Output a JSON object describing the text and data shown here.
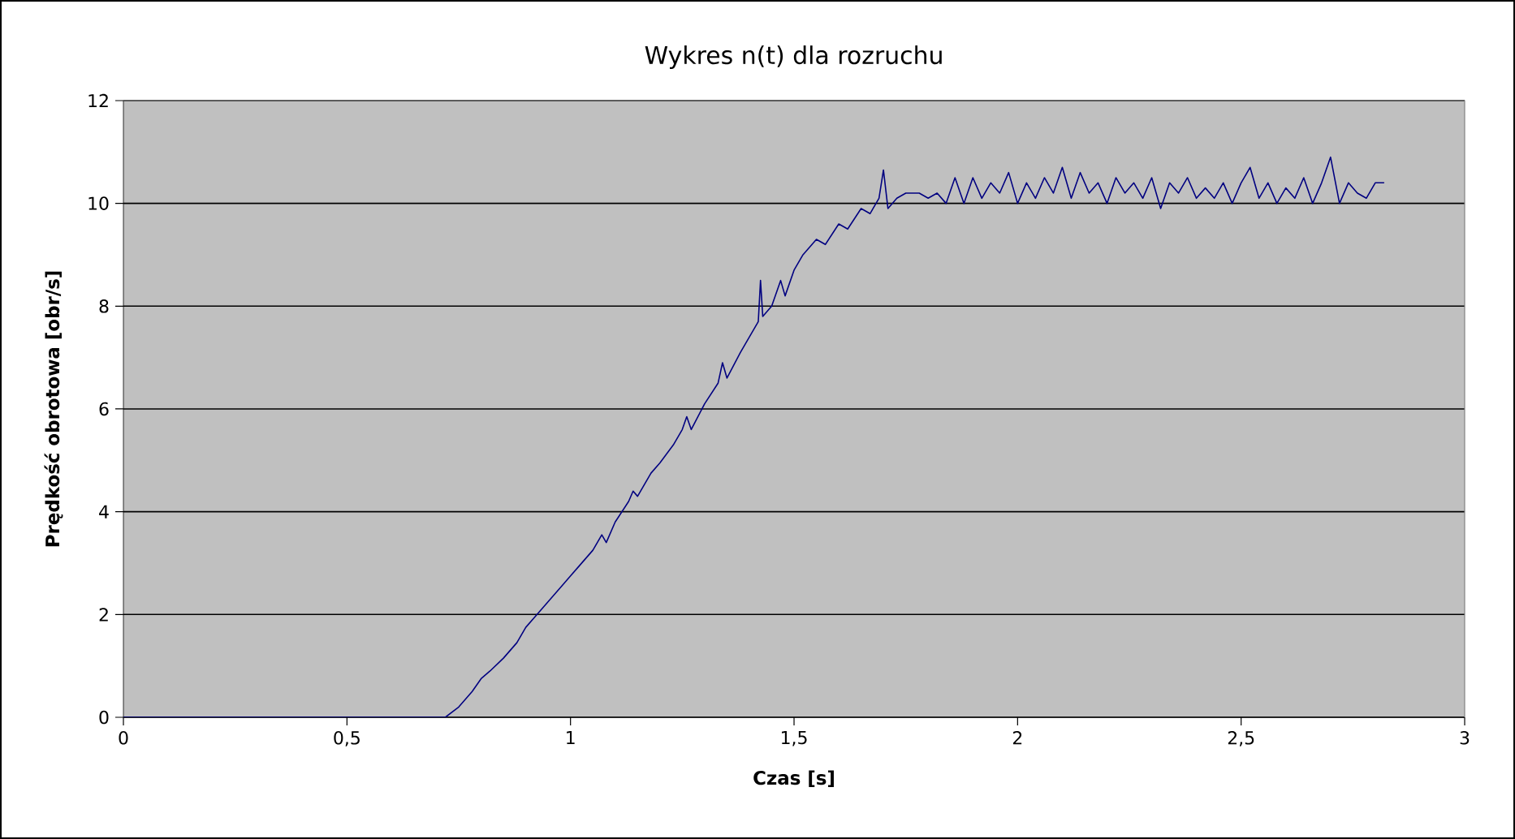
{
  "chart_data": {
    "type": "line",
    "title": "Wykres n(t) dla rozruchu",
    "xlabel": "Czas [s]",
    "ylabel": "Prędkość obrotowa [obr/s]",
    "xlim": [
      0,
      3
    ],
    "ylim": [
      0,
      12
    ],
    "xticks": [
      0,
      {
        "value": 0.5,
        "label": "0,5"
      },
      1,
      {
        "value": 1.5,
        "label": "1,5"
      },
      2,
      {
        "value": 2.5,
        "label": "2,5"
      },
      3
    ],
    "yticks": [
      0,
      2,
      4,
      6,
      8,
      10,
      12
    ],
    "grid": "y",
    "series": [
      {
        "color": "#000080",
        "x": [
          0,
          0.7,
          0.72,
          0.75,
          0.78,
          0.8,
          0.82,
          0.85,
          0.88,
          0.9,
          0.92,
          0.95,
          0.98,
          1.0,
          1.02,
          1.05,
          1.07,
          1.08,
          1.1,
          1.13,
          1.14,
          1.15,
          1.18,
          1.2,
          1.23,
          1.25,
          1.26,
          1.27,
          1.3,
          1.33,
          1.34,
          1.35,
          1.38,
          1.4,
          1.42,
          1.425,
          1.43,
          1.45,
          1.47,
          1.48,
          1.5,
          1.52,
          1.55,
          1.57,
          1.6,
          1.62,
          1.65,
          1.67,
          1.69,
          1.7,
          1.71,
          1.73,
          1.75,
          1.78,
          1.8,
          1.82,
          1.84,
          1.86,
          1.88,
          1.9,
          1.92,
          1.94,
          1.96,
          1.98,
          2.0,
          2.02,
          2.04,
          2.06,
          2.08,
          2.1,
          2.12,
          2.14,
          2.16,
          2.18,
          2.2,
          2.22,
          2.24,
          2.26,
          2.28,
          2.3,
          2.32,
          2.34,
          2.36,
          2.38,
          2.4,
          2.42,
          2.44,
          2.46,
          2.48,
          2.5,
          2.52,
          2.54,
          2.56,
          2.58,
          2.6,
          2.62,
          2.64,
          2.66,
          2.68,
          2.7,
          2.72,
          2.74,
          2.76,
          2.78,
          2.8,
          2.82
        ],
        "values": [
          0,
          0,
          0,
          0.2,
          0.5,
          0.75,
          0.9,
          1.15,
          1.45,
          1.75,
          1.95,
          2.25,
          2.55,
          2.75,
          2.95,
          3.25,
          3.55,
          3.4,
          3.8,
          4.2,
          4.4,
          4.3,
          4.75,
          4.95,
          5.3,
          5.6,
          5.85,
          5.6,
          6.1,
          6.5,
          6.9,
          6.6,
          7.1,
          7.4,
          7.7,
          8.5,
          7.8,
          8.0,
          8.5,
          8.2,
          8.7,
          9.0,
          9.3,
          9.2,
          9.6,
          9.5,
          9.9,
          9.8,
          10.1,
          10.65,
          9.9,
          10.1,
          10.2,
          10.2,
          10.1,
          10.2,
          10.0,
          10.5,
          10.0,
          10.5,
          10.1,
          10.4,
          10.2,
          10.6,
          10.0,
          10.4,
          10.1,
          10.5,
          10.2,
          10.7,
          10.1,
          10.6,
          10.2,
          10.4,
          10.0,
          10.5,
          10.2,
          10.4,
          10.1,
          10.5,
          9.9,
          10.4,
          10.2,
          10.5,
          10.1,
          10.3,
          10.1,
          10.4,
          10.0,
          10.4,
          10.7,
          10.1,
          10.4,
          10.0,
          10.3,
          10.1,
          10.5,
          10.0,
          10.4,
          10.9,
          10.0,
          10.4,
          10.2,
          10.1,
          10.4,
          10.4
        ]
      }
    ]
  }
}
